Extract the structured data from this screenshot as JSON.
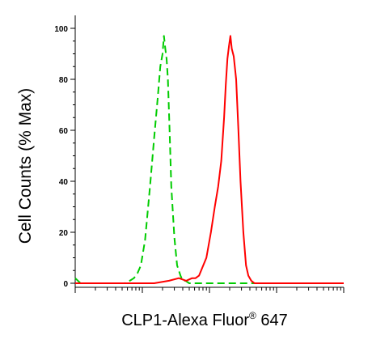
{
  "chart_data": {
    "type": "line",
    "xlabel_main": "CLP1-Alexa Fluor",
    "xlabel_sup": "®",
    "xlabel_tail": " 647",
    "ylabel": "Cell Counts (% Max)",
    "x_scale": "log",
    "xlim": [
      1,
      10000
    ],
    "ylim": [
      0,
      105
    ],
    "y_ticks": [
      {
        "value": 0,
        "label": "0"
      },
      {
        "value": 20,
        "label": "20"
      },
      {
        "value": 40,
        "label": "40"
      },
      {
        "value": 60,
        "label": "60"
      },
      {
        "value": 80,
        "label": "80"
      },
      {
        "value": 100,
        "label": "100"
      }
    ],
    "grid": false,
    "legend": "none",
    "series": [
      {
        "color": "#00cc00",
        "style": "dashed",
        "x": [
          1,
          1.2,
          2,
          4,
          5.5,
          6.5,
          7.5,
          8.5,
          9.5,
          11,
          13,
          15,
          17,
          18.5,
          20,
          21,
          22,
          23,
          24,
          25.5,
          27,
          30,
          33,
          37,
          40,
          44,
          50,
          60,
          80,
          120,
          200,
          400,
          10000
        ],
        "y": [
          2,
          0,
          0,
          0,
          0,
          1,
          2,
          4,
          7,
          17,
          38,
          57,
          73,
          85,
          90,
          97,
          92,
          88,
          80,
          60,
          38,
          18,
          7,
          3,
          1,
          1,
          0,
          0,
          0,
          0,
          0,
          0,
          0
        ]
      },
      {
        "color": "#ff0000",
        "style": "solid",
        "x": [
          1,
          4,
          9,
          15,
          25,
          35,
          45,
          55,
          62,
          70,
          78,
          90,
          105,
          120,
          135,
          150,
          165,
          175,
          185,
          195,
          205,
          215,
          230,
          250,
          270,
          290,
          320,
          350,
          380,
          420,
          470,
          550,
          650,
          800,
          1000,
          2000,
          10000
        ],
        "y": [
          0,
          0,
          0,
          0,
          1,
          2,
          1,
          2,
          2,
          3,
          6,
          10,
          20,
          30,
          38,
          48,
          65,
          78,
          88,
          93,
          97,
          92,
          89,
          80,
          60,
          40,
          20,
          7,
          3,
          1,
          0,
          0,
          0,
          0,
          0,
          0,
          0
        ]
      }
    ]
  }
}
